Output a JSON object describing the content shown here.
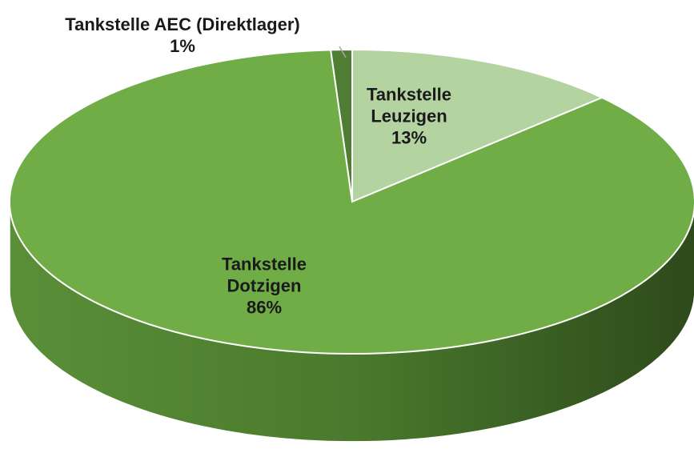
{
  "chart_data": {
    "type": "pie3d",
    "categories": [
      "Tankstelle Leuzigen",
      "Tankstelle Dotzigen",
      "Tankstelle AEC (Direktlager)"
    ],
    "values": [
      13,
      86,
      1
    ],
    "value_labels": [
      "13%",
      "86%",
      "1%"
    ],
    "colors": [
      "#b3d3a0",
      "#70ad47",
      "#4e7d33"
    ]
  }
}
